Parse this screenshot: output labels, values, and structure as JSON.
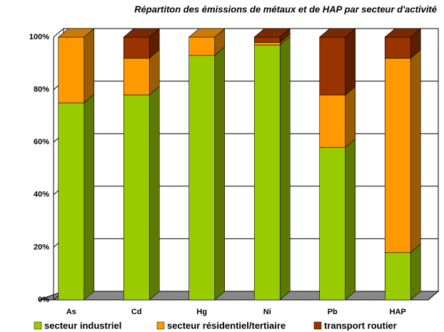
{
  "chart_data": {
    "type": "stacked_bar_3d",
    "title": "Répartiton des émissions de métaux et de HAP par secteur d'activité",
    "categories": [
      "As",
      "Cd",
      "Hg",
      "Ni",
      "Pb",
      "HAP"
    ],
    "series": [
      {
        "name": "secteur industriel",
        "color": "#99cc00",
        "values": [
          75,
          78,
          93,
          97,
          58,
          18
        ]
      },
      {
        "name": "secteur résidentiel/tertiaire",
        "color": "#ff9900",
        "values": [
          25,
          14,
          7,
          1,
          20,
          74
        ]
      },
      {
        "name": "transport routier",
        "color": "#993300",
        "values": [
          0,
          8,
          0,
          2,
          22,
          8
        ]
      }
    ],
    "ylim": [
      0,
      100
    ],
    "yticks": [
      {
        "value": 0,
        "label": "0%"
      },
      {
        "value": 20,
        "label": "20%"
      },
      {
        "value": 40,
        "label": "40%"
      },
      {
        "value": 60,
        "label": "60%"
      },
      {
        "value": 80,
        "label": "80%"
      },
      {
        "value": 100,
        "label": "100%"
      }
    ],
    "grid": true
  }
}
